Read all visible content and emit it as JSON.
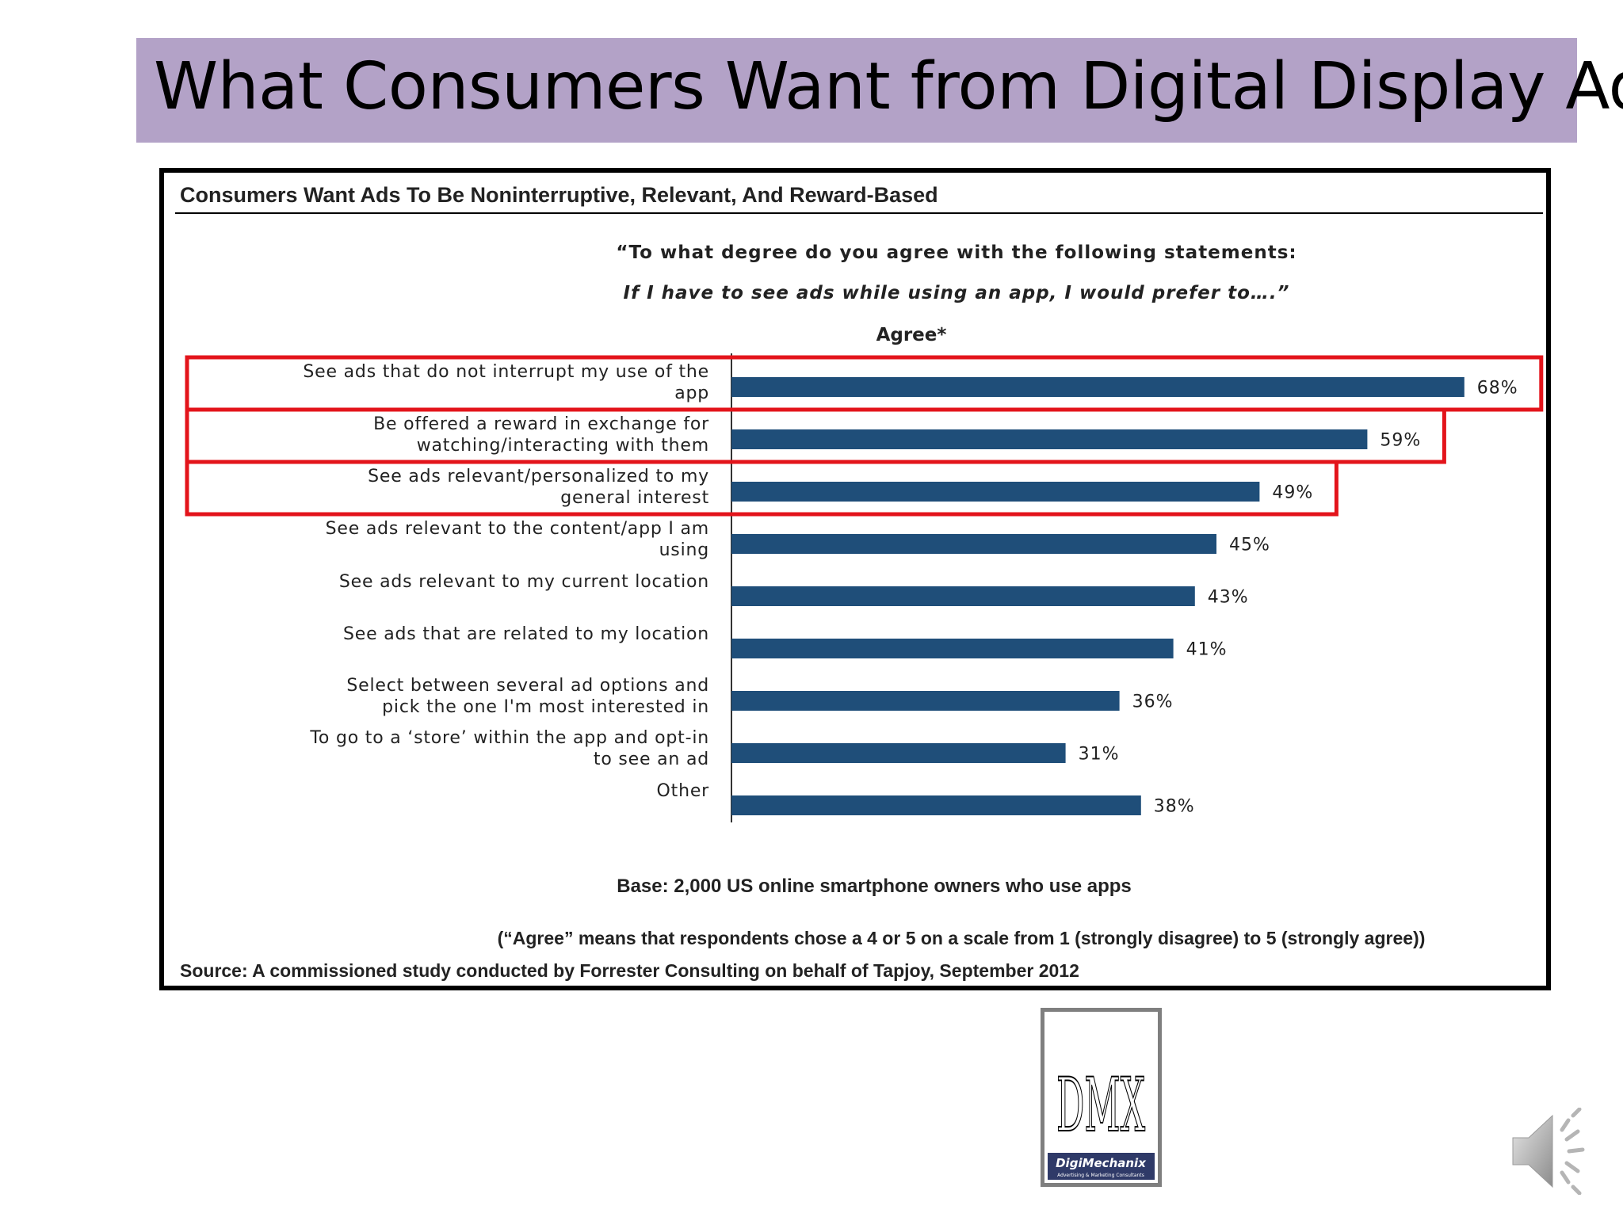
{
  "slide": {
    "title": "What Consumers Want from Digital Display Ads",
    "logo_text": "DigiMechanix",
    "logo_tagline": "Advertising & Marketing Consultants",
    "logo_letters": "DMX"
  },
  "colors": {
    "title_bar": "#b3a2c7",
    "bar": "#1f4e79",
    "highlight": "#e3141b",
    "frame": "#000000"
  },
  "icons": {
    "speaker": "speaker-icon"
  },
  "chart_data": {
    "type": "bar",
    "orientation": "horizontal",
    "title": "Consumers Want Ads To Be Noninterruptive, Relevant, And Reward-Based",
    "question_line1": "“To what degree do you agree with the following statements:",
    "question_line2": "If I have to see ads while using an app, I would prefer to….”",
    "column_header": "Agree*",
    "categories": [
      [
        "See ads that do not interrupt my use of the",
        "app"
      ],
      [
        "Be offered a reward in exchange for",
        "watching/interacting with them"
      ],
      [
        "See ads relevant/personalized to my",
        "general interest"
      ],
      [
        "See ads relevant to the content/app I am",
        "using"
      ],
      [
        "See ads relevant to my current location"
      ],
      [
        "See ads that are related to my location"
      ],
      [
        "Select between several ad options and",
        "pick the one I'm most interested in"
      ],
      [
        "To go to a ‘store’ within the app and opt-in",
        "to see an ad"
      ],
      [
        "Other"
      ]
    ],
    "values": [
      68,
      59,
      49,
      45,
      43,
      41,
      36,
      31,
      38
    ],
    "value_labels": [
      "68%",
      "59%",
      "49%",
      "45%",
      "43%",
      "41%",
      "36%",
      "31%",
      "38%"
    ],
    "highlighted": [
      0,
      1,
      2
    ],
    "xlim": [
      0,
      100
    ],
    "base_note": "Base: 2,000 US online smartphone owners who use apps",
    "agree_note": "(“Agree” means that respondents chose a 4 or 5 on a scale from 1 (strongly disagree) to 5 (strongly agree))",
    "source": "Source: A commissioned study conducted by Forrester Consulting on behalf of Tapjoy, September 2012"
  }
}
